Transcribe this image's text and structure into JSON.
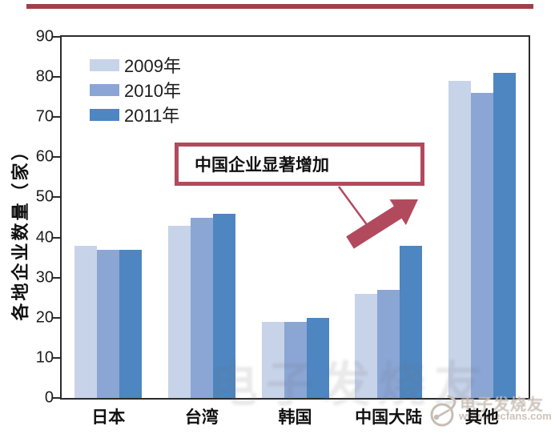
{
  "page": {
    "top_accent_color": "#a23f48"
  },
  "chart_data": {
    "type": "bar",
    "title": "",
    "categories": [
      "日本",
      "台湾",
      "韩国",
      "中国大陆",
      "其他"
    ],
    "series": [
      {
        "name": "2009年",
        "color": "#c7d3e9",
        "values": [
          38,
          43,
          19,
          26,
          79
        ]
      },
      {
        "name": "2010年",
        "color": "#8ba6d5",
        "values": [
          37,
          45,
          19,
          27,
          76
        ]
      },
      {
        "name": "2011年",
        "color": "#4d86c1",
        "values": [
          37,
          46,
          20,
          38,
          81
        ]
      }
    ],
    "xlabel": "",
    "ylabel": "各地企业数量（家）",
    "ylim": [
      0,
      90
    ],
    "ytick_step": 10,
    "grid": false,
    "legend_position": "upper-left-inside",
    "axis_color": "#2b2b2b"
  },
  "annotation": {
    "text": "中国企业显著增加",
    "color": "#b24a5e"
  },
  "watermark": {
    "ghost_text": "电子发烧友",
    "site_name": "电子发烧友",
    "site_url": "www.elecfans.com"
  }
}
